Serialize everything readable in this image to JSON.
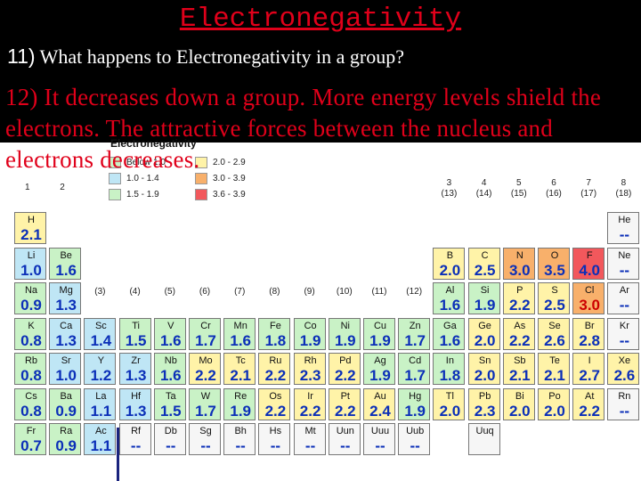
{
  "title": "Electronegativity",
  "question": {
    "number": "11)",
    "text": "What happens to Electronegativity in a group?"
  },
  "answer": "12) It decreases down a group. More energy levels shield the electrons. The attractive forces between the nucleus and electrons decreases.",
  "table": {
    "legend_title": "Electronegativity",
    "legend": [
      {
        "label": "Below 1.0",
        "color": "#c9f2c6"
      },
      {
        "label": "1.0 - 1.4",
        "color": "#bfe6f5"
      },
      {
        "label": "1.5 - 1.9",
        "color": "#c9f2c6"
      },
      {
        "label": "2.0 - 2.9",
        "color": "#fff3a8"
      },
      {
        "label": "3.0 - 3.9",
        "color": "#f8b06b"
      },
      {
        "label": "3.6 - 3.9",
        "color": "#f2585c"
      }
    ],
    "group_labels": [
      {
        "text": "1",
        "col": 0,
        "row": 0
      },
      {
        "text": "2",
        "col": 1,
        "row": 0
      },
      {
        "text": "(3)",
        "col": 2,
        "row": 1
      },
      {
        "text": "(4)",
        "col": 3,
        "row": 1
      },
      {
        "text": "(5)",
        "col": 4,
        "row": 1
      },
      {
        "text": "(6)",
        "col": 5,
        "row": 1
      },
      {
        "text": "(7)",
        "col": 6,
        "row": 1
      },
      {
        "text": "(8)",
        "col": 7,
        "row": 1
      },
      {
        "text": "(9)",
        "col": 8,
        "row": 1
      },
      {
        "text": "(10)",
        "col": 9,
        "row": 1
      },
      {
        "text": "(11)",
        "col": 10,
        "row": 1
      },
      {
        "text": "(12)",
        "col": 11,
        "row": 1
      },
      {
        "text": "3\n(13)",
        "col": 12,
        "row": 0
      },
      {
        "text": "4\n(14)",
        "col": 13,
        "row": 0
      },
      {
        "text": "5\n(15)",
        "col": 14,
        "row": 0
      },
      {
        "text": "6\n(16)",
        "col": 15,
        "row": 0
      },
      {
        "text": "7\n(17)",
        "col": 16,
        "row": 0
      },
      {
        "text": "8\n(18)",
        "col": 17,
        "row": 0
      }
    ],
    "elements": [
      {
        "s": "H",
        "v": "2.1",
        "c": 0,
        "r": 0,
        "bg": "yl"
      },
      {
        "s": "He",
        "v": "--",
        "c": 17,
        "r": 0,
        "bg": "gy"
      },
      {
        "s": "Li",
        "v": "1.0",
        "c": 0,
        "r": 1,
        "bg": "lb"
      },
      {
        "s": "Be",
        "v": "1.6",
        "c": 1,
        "r": 1,
        "bg": "pg"
      },
      {
        "s": "B",
        "v": "2.0",
        "c": 12,
        "r": 1,
        "bg": "yl"
      },
      {
        "s": "C",
        "v": "2.5",
        "c": 13,
        "r": 1,
        "bg": "yl"
      },
      {
        "s": "N",
        "v": "3.0",
        "c": 14,
        "r": 1,
        "bg": "or"
      },
      {
        "s": "O",
        "v": "3.5",
        "c": 15,
        "r": 1,
        "bg": "or"
      },
      {
        "s": "F",
        "v": "4.0",
        "c": 16,
        "r": 1,
        "bg": "rd"
      },
      {
        "s": "Ne",
        "v": "--",
        "c": 17,
        "r": 1,
        "bg": "gy"
      },
      {
        "s": "Na",
        "v": "0.9",
        "c": 0,
        "r": 2,
        "bg": "pg"
      },
      {
        "s": "Mg",
        "v": "1.3",
        "c": 1,
        "r": 2,
        "bg": "lb"
      },
      {
        "s": "Al",
        "v": "1.6",
        "c": 12,
        "r": 2,
        "bg": "pg"
      },
      {
        "s": "Si",
        "v": "1.9",
        "c": 13,
        "r": 2,
        "bg": "pg"
      },
      {
        "s": "P",
        "v": "2.2",
        "c": 14,
        "r": 2,
        "bg": "yl"
      },
      {
        "s": "S",
        "v": "2.5",
        "c": 15,
        "r": 2,
        "bg": "yl"
      },
      {
        "s": "Cl",
        "v": "3.0",
        "c": 16,
        "r": 2,
        "bg": "or",
        "red": true
      },
      {
        "s": "Ar",
        "v": "--",
        "c": 17,
        "r": 2,
        "bg": "gy"
      },
      {
        "s": "K",
        "v": "0.8",
        "c": 0,
        "r": 3,
        "bg": "pg"
      },
      {
        "s": "Ca",
        "v": "1.3",
        "c": 1,
        "r": 3,
        "bg": "lb"
      },
      {
        "s": "Sc",
        "v": "1.4",
        "c": 2,
        "r": 3,
        "bg": "lb"
      },
      {
        "s": "Ti",
        "v": "1.5",
        "c": 3,
        "r": 3,
        "bg": "pg"
      },
      {
        "s": "V",
        "v": "1.6",
        "c": 4,
        "r": 3,
        "bg": "pg"
      },
      {
        "s": "Cr",
        "v": "1.7",
        "c": 5,
        "r": 3,
        "bg": "pg"
      },
      {
        "s": "Mn",
        "v": "1.6",
        "c": 6,
        "r": 3,
        "bg": "pg"
      },
      {
        "s": "Fe",
        "v": "1.8",
        "c": 7,
        "r": 3,
        "bg": "pg"
      },
      {
        "s": "Co",
        "v": "1.9",
        "c": 8,
        "r": 3,
        "bg": "pg"
      },
      {
        "s": "Ni",
        "v": "1.9",
        "c": 9,
        "r": 3,
        "bg": "pg"
      },
      {
        "s": "Cu",
        "v": "1.9",
        "c": 10,
        "r": 3,
        "bg": "pg"
      },
      {
        "s": "Zn",
        "v": "1.7",
        "c": 11,
        "r": 3,
        "bg": "pg"
      },
      {
        "s": "Ga",
        "v": "1.6",
        "c": 12,
        "r": 3,
        "bg": "pg"
      },
      {
        "s": "Ge",
        "v": "2.0",
        "c": 13,
        "r": 3,
        "bg": "yl"
      },
      {
        "s": "As",
        "v": "2.2",
        "c": 14,
        "r": 3,
        "bg": "yl"
      },
      {
        "s": "Se",
        "v": "2.6",
        "c": 15,
        "r": 3,
        "bg": "yl"
      },
      {
        "s": "Br",
        "v": "2.8",
        "c": 16,
        "r": 3,
        "bg": "yl"
      },
      {
        "s": "Kr",
        "v": "--",
        "c": 17,
        "r": 3,
        "bg": "gy"
      },
      {
        "s": "Rb",
        "v": "0.8",
        "c": 0,
        "r": 4,
        "bg": "pg"
      },
      {
        "s": "Sr",
        "v": "1.0",
        "c": 1,
        "r": 4,
        "bg": "lb"
      },
      {
        "s": "Y",
        "v": "1.2",
        "c": 2,
        "r": 4,
        "bg": "lb"
      },
      {
        "s": "Zr",
        "v": "1.3",
        "c": 3,
        "r": 4,
        "bg": "lb"
      },
      {
        "s": "Nb",
        "v": "1.6",
        "c": 4,
        "r": 4,
        "bg": "pg"
      },
      {
        "s": "Mo",
        "v": "2.2",
        "c": 5,
        "r": 4,
        "bg": "yl"
      },
      {
        "s": "Tc",
        "v": "2.1",
        "c": 6,
        "r": 4,
        "bg": "yl"
      },
      {
        "s": "Ru",
        "v": "2.2",
        "c": 7,
        "r": 4,
        "bg": "yl"
      },
      {
        "s": "Rh",
        "v": "2.3",
        "c": 8,
        "r": 4,
        "bg": "yl"
      },
      {
        "s": "Pd",
        "v": "2.2",
        "c": 9,
        "r": 4,
        "bg": "yl"
      },
      {
        "s": "Ag",
        "v": "1.9",
        "c": 10,
        "r": 4,
        "bg": "pg"
      },
      {
        "s": "Cd",
        "v": "1.7",
        "c": 11,
        "r": 4,
        "bg": "pg"
      },
      {
        "s": "In",
        "v": "1.8",
        "c": 12,
        "r": 4,
        "bg": "pg"
      },
      {
        "s": "Sn",
        "v": "2.0",
        "c": 13,
        "r": 4,
        "bg": "yl"
      },
      {
        "s": "Sb",
        "v": "2.1",
        "c": 14,
        "r": 4,
        "bg": "yl"
      },
      {
        "s": "Te",
        "v": "2.1",
        "c": 15,
        "r": 4,
        "bg": "yl"
      },
      {
        "s": "I",
        "v": "2.7",
        "c": 16,
        "r": 4,
        "bg": "yl"
      },
      {
        "s": "Xe",
        "v": "2.6",
        "c": 17,
        "r": 4,
        "bg": "yl"
      },
      {
        "s": "Cs",
        "v": "0.8",
        "c": 0,
        "r": 5,
        "bg": "pg"
      },
      {
        "s": "Ba",
        "v": "0.9",
        "c": 1,
        "r": 5,
        "bg": "pg"
      },
      {
        "s": "La",
        "v": "1.1",
        "c": 2,
        "r": 5,
        "bg": "lb"
      },
      {
        "s": "Hf",
        "v": "1.3",
        "c": 3,
        "r": 5,
        "bg": "lb"
      },
      {
        "s": "Ta",
        "v": "1.5",
        "c": 4,
        "r": 5,
        "bg": "pg"
      },
      {
        "s": "W",
        "v": "1.7",
        "c": 5,
        "r": 5,
        "bg": "pg"
      },
      {
        "s": "Re",
        "v": "1.9",
        "c": 6,
        "r": 5,
        "bg": "pg"
      },
      {
        "s": "Os",
        "v": "2.2",
        "c": 7,
        "r": 5,
        "bg": "yl"
      },
      {
        "s": "Ir",
        "v": "2.2",
        "c": 8,
        "r": 5,
        "bg": "yl"
      },
      {
        "s": "Pt",
        "v": "2.2",
        "c": 9,
        "r": 5,
        "bg": "yl"
      },
      {
        "s": "Au",
        "v": "2.4",
        "c": 10,
        "r": 5,
        "bg": "yl"
      },
      {
        "s": "Hg",
        "v": "1.9",
        "c": 11,
        "r": 5,
        "bg": "pg"
      },
      {
        "s": "Tl",
        "v": "2.0",
        "c": 12,
        "r": 5,
        "bg": "yl"
      },
      {
        "s": "Pb",
        "v": "2.3",
        "c": 13,
        "r": 5,
        "bg": "yl"
      },
      {
        "s": "Bi",
        "v": "2.0",
        "c": 14,
        "r": 5,
        "bg": "yl"
      },
      {
        "s": "Po",
        "v": "2.0",
        "c": 15,
        "r": 5,
        "bg": "yl"
      },
      {
        "s": "At",
        "v": "2.2",
        "c": 16,
        "r": 5,
        "bg": "yl"
      },
      {
        "s": "Rn",
        "v": "--",
        "c": 17,
        "r": 5,
        "bg": "gy"
      },
      {
        "s": "Fr",
        "v": "0.7",
        "c": 0,
        "r": 6,
        "bg": "pg"
      },
      {
        "s": "Ra",
        "v": "0.9",
        "c": 1,
        "r": 6,
        "bg": "pg"
      },
      {
        "s": "Ac",
        "v": "1.1",
        "c": 2,
        "r": 6,
        "bg": "lb"
      },
      {
        "s": "Rf",
        "v": "--",
        "c": 3,
        "r": 6,
        "bg": "gy"
      },
      {
        "s": "Db",
        "v": "--",
        "c": 4,
        "r": 6,
        "bg": "gy"
      },
      {
        "s": "Sg",
        "v": "--",
        "c": 5,
        "r": 6,
        "bg": "gy"
      },
      {
        "s": "Bh",
        "v": "--",
        "c": 6,
        "r": 6,
        "bg": "gy"
      },
      {
        "s": "Hs",
        "v": "--",
        "c": 7,
        "r": 6,
        "bg": "gy"
      },
      {
        "s": "Mt",
        "v": "--",
        "c": 8,
        "r": 6,
        "bg": "gy"
      },
      {
        "s": "Uun",
        "v": "--",
        "c": 9,
        "r": 6,
        "bg": "gy"
      },
      {
        "s": "Uuu",
        "v": "--",
        "c": 10,
        "r": 6,
        "bg": "gy"
      },
      {
        "s": "Uub",
        "v": "--",
        "c": 11,
        "r": 6,
        "bg": "gy"
      },
      {
        "s": "Uuq",
        "v": "",
        "c": 13,
        "r": 6,
        "bg": "gy"
      }
    ]
  }
}
